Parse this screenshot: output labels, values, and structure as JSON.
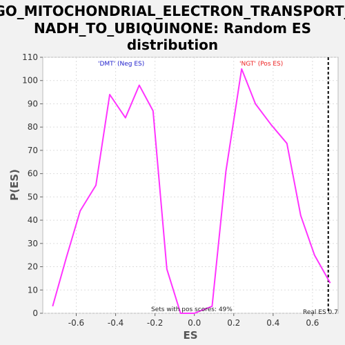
{
  "chart_data": {
    "type": "line",
    "title": [
      "GO_MITOCHONDRIAL_ELECTRON_TRANSPORT_",
      "NADH_TO_UBIQUINONE: Random ES",
      "distribution"
    ],
    "xlabel": "ES",
    "ylabel": "P(ES)",
    "xlim": [
      -0.77,
      0.73
    ],
    "ylim": [
      0,
      110
    ],
    "x_ticks": [
      -0.6,
      -0.4,
      -0.2,
      0.0,
      0.2,
      0.4,
      0.6
    ],
    "x_tick_labels": [
      "-0.6",
      "-0.4",
      "-0.2",
      "0.0",
      "0.2",
      "0.4",
      "0.6"
    ],
    "y_ticks": [
      0,
      10,
      20,
      30,
      40,
      50,
      60,
      70,
      80,
      90,
      100,
      110
    ],
    "y_tick_labels": [
      "0",
      "10",
      "20",
      "30",
      "40",
      "50",
      "60",
      "70",
      "80",
      "90",
      "100",
      "110"
    ],
    "grid": true,
    "series": [
      {
        "color": "#ff33ff",
        "x": [
          -0.72,
          -0.65,
          -0.58,
          -0.5,
          -0.43,
          -0.35,
          -0.28,
          -0.21,
          -0.14,
          -0.07,
          0.0,
          0.03,
          0.09,
          0.16,
          0.24,
          0.31,
          0.39,
          0.47,
          0.54,
          0.61,
          0.69
        ],
        "values": [
          3,
          24,
          44,
          55,
          94,
          84,
          98,
          87,
          19,
          0,
          0,
          1,
          3,
          61,
          105,
          90,
          81,
          73,
          42,
          25,
          13
        ]
      }
    ],
    "annotations": {
      "neg_label": "'DMT' (Neg ES)",
      "pos_label": "'NGT' (Pos ES)",
      "neg_color": "#2222cc",
      "pos_color": "#ee2222",
      "sets_note": "Sets with pos scores: 49%",
      "real_es_label": "Real ES 0.7",
      "real_es_value": 0.68
    }
  }
}
